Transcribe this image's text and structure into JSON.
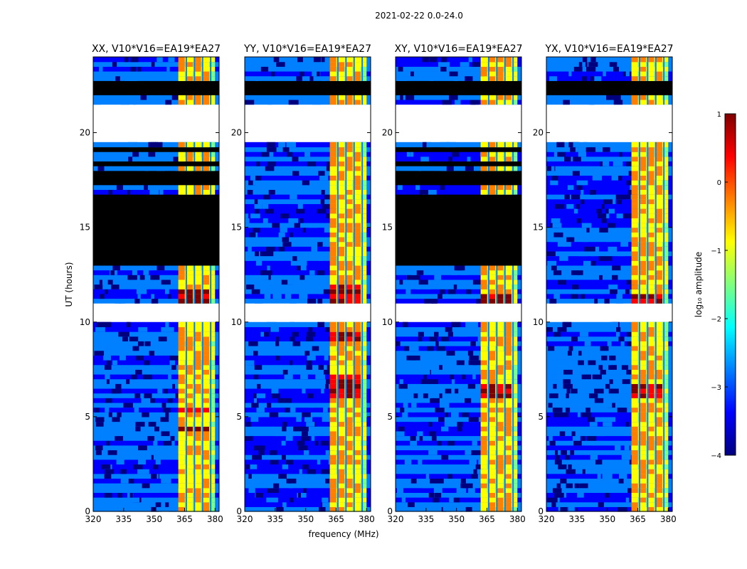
{
  "chart_data": {
    "type": "heatmap",
    "suptitle": "2021-02-22 0.0-24.0",
    "xlabel": "frequency (MHz)",
    "ylabel": "UT (hours)",
    "xlim": [
      320,
      382
    ],
    "ylim": [
      0,
      24
    ],
    "xticks": [
      320,
      335,
      350,
      365,
      380
    ],
    "yticks": [
      0,
      5,
      10,
      15,
      20
    ],
    "panels": [
      {
        "title": "XX, V10*V16=EA19*EA27",
        "flagged_hours": [
          [
            13.1,
            16.7
          ],
          [
            17.3,
            17.9
          ],
          [
            18.3,
            18.5
          ],
          [
            18.9,
            19.2
          ],
          [
            21.9,
            22.7
          ]
        ],
        "empty_hours": [
          [
            10.0,
            10.9
          ],
          [
            19.4,
            21.6
          ]
        ],
        "peak_hours": [
          [
            11.1,
            11.7
          ],
          [
            4.2,
            4.5
          ],
          [
            5.3,
            5.6
          ]
        ]
      },
      {
        "title": "YY, V10*V16=EA19*EA27",
        "flagged_hours": [
          [
            21.9,
            22.7
          ]
        ],
        "empty_hours": [
          [
            10.0,
            10.9
          ],
          [
            19.4,
            21.6
          ]
        ],
        "peak_hours": [
          [
            10.9,
            11.9
          ],
          [
            6.0,
            7.2
          ],
          [
            9.1,
            9.5
          ]
        ]
      },
      {
        "title": "XY, V10*V16=EA19*EA27",
        "flagged_hours": [
          [
            13.1,
            16.7
          ],
          [
            17.3,
            17.9
          ],
          [
            18.3,
            18.5
          ],
          [
            18.9,
            19.2
          ],
          [
            21.9,
            22.7
          ]
        ],
        "empty_hours": [
          [
            10.0,
            10.9
          ],
          [
            19.4,
            21.6
          ]
        ],
        "peak_hours": [
          [
            11.1,
            11.6
          ],
          [
            6.1,
            6.7
          ]
        ]
      },
      {
        "title": "YX, V10*V16=EA19*EA27",
        "flagged_hours": [
          [
            21.9,
            22.7
          ]
        ],
        "empty_hours": [
          [
            10.0,
            10.9
          ],
          [
            19.4,
            21.6
          ]
        ],
        "peak_hours": [
          [
            11.0,
            11.6
          ],
          [
            6.1,
            6.7
          ]
        ]
      }
    ],
    "rfi_band_mhz": [
      362,
      380
    ],
    "rfi_channels_mhz": [
      363.5,
      367.5,
      371.5,
      375.5
    ],
    "colorbar": {
      "label": "log₁₀ amplitude",
      "range": [
        -4,
        1
      ],
      "ticks": [
        1,
        0,
        -1,
        -2,
        -3,
        -4
      ],
      "tick_labels": [
        "1",
        "0",
        "−1",
        "−2",
        "−3",
        "−4"
      ],
      "colormap": [
        "#00007f",
        "#0000ff",
        "#007fff",
        "#00ffff",
        "#7fff7f",
        "#ffff00",
        "#ff7f00",
        "#ff0000",
        "#7f0000"
      ]
    }
  }
}
